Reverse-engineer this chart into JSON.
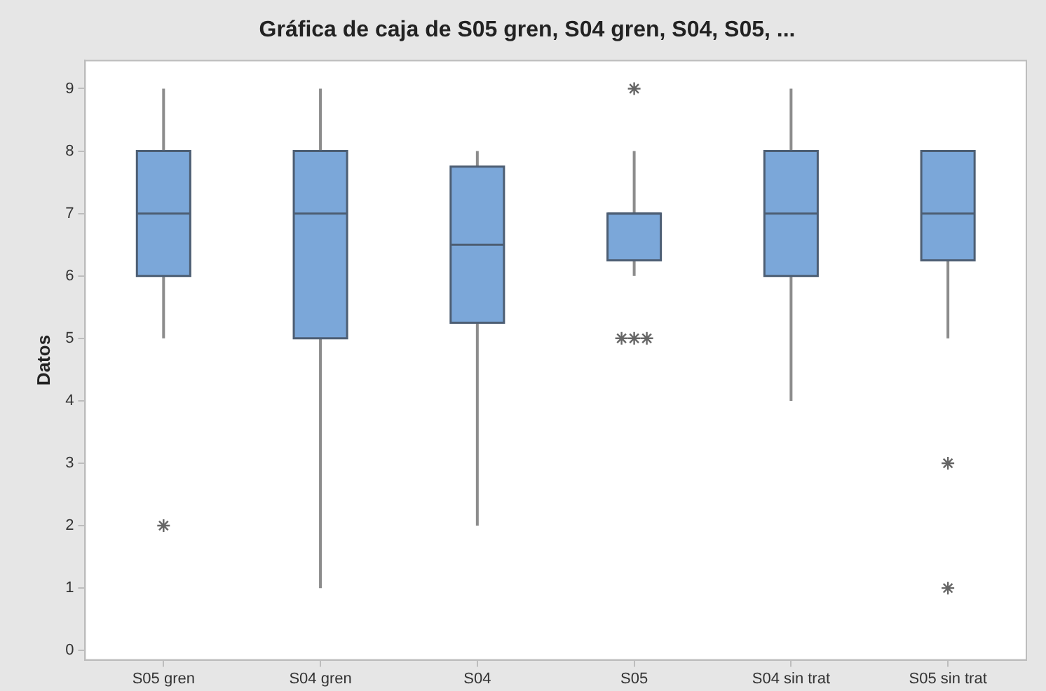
{
  "chart_data": {
    "type": "box",
    "title": "Gráfica de caja de S05 gren, S04 gren, S04, S05, ...",
    "ylabel": "Datos",
    "categories": [
      "S05 gren",
      "S04 gren",
      "S04",
      "S05",
      "S04 sin trat",
      "S05 sin trat"
    ],
    "color": "#7ba7d9",
    "marker": "star",
    "grid": false,
    "legend": false,
    "ylim": [
      -0.15,
      9.45
    ],
    "yticks": [
      0,
      1,
      2,
      3,
      4,
      5,
      6,
      7,
      8,
      9
    ],
    "boxes": [
      {
        "low": 5,
        "q1": 6,
        "median": 7,
        "q3": 8,
        "high": 9,
        "outliers": [
          2
        ]
      },
      {
        "low": 1,
        "q1": 5,
        "median": 7,
        "q3": 8,
        "high": 9
      },
      {
        "low": 2,
        "q1": 5.25,
        "median": 6.5,
        "q3": 7.75,
        "high": 8
      },
      {
        "low": 6,
        "q1": 6.25,
        "median": 7,
        "q3": 7,
        "high": 8,
        "outliers": [
          9,
          5,
          5,
          5
        ]
      },
      {
        "low": 4,
        "q1": 6,
        "median": 7,
        "q3": 8,
        "high": 9
      },
      {
        "low": 5,
        "q1": 6.25,
        "median": 7,
        "q3": 8,
        "high": 8,
        "outliers": [
          3,
          1
        ]
      }
    ]
  }
}
